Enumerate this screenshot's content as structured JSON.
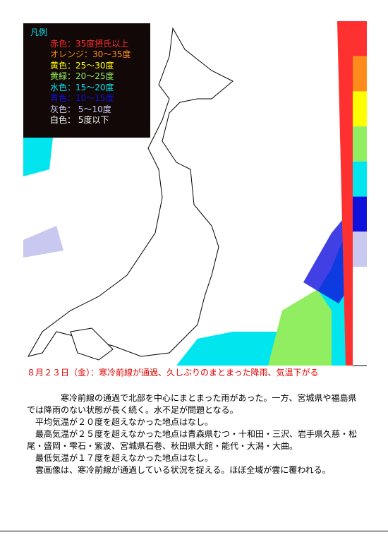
{
  "legend": {
    "title": "凡例",
    "items": [
      {
        "label": "赤色：35度摂氏以上",
        "color": "#ff3030"
      },
      {
        "label": "オレンジ：30～35度",
        "color": "#ff8c1a"
      },
      {
        "label": "黄色：25～30度",
        "color": "#ffff00"
      },
      {
        "label": "黄緑：20～25度",
        "color": "#90ee60"
      },
      {
        "label": "水色：15～20度",
        "color": "#00e5ee"
      },
      {
        "label": "青色：10～15度",
        "color": "#1010dd"
      },
      {
        "label": "灰色： 5～10度",
        "color": "#c8c8f0"
      },
      {
        "label": "白色： 5度以下",
        "color": "#ffffff"
      }
    ]
  },
  "heading": "８月２３日（金）：寒冷前線が通過、久しぶりのまとまった降雨、気温下がる",
  "paragraphs": [
    "寒冷前線の通過で北部を中心にまとまった雨があった。一方、宮城県や福島県では降雨のない状態が長く続く。水不足が問題となる。",
    "平均気温が２０度を超えなかった地点はなし。",
    "最高気温が２５度を超えなかった地点は青森県むつ・十和田・三沢、岩手県久慈・松尾・盛岡・雫石・紫波、宮城県石巻、秋田県大館・能代・大潟・大曲。",
    "最低気温が１７度を超えなかった地点はなし。",
    "雲画像は、寒冷前線が通過している状況を捉える。ほぼ全域が雲に覆われる。"
  ]
}
